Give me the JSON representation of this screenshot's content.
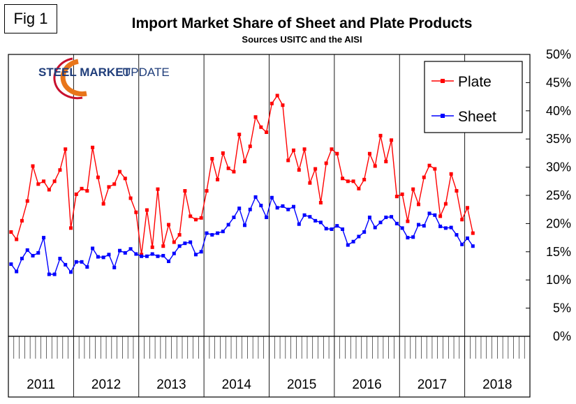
{
  "figure_label": "Fig 1",
  "logo": {
    "text_bold": "STEEL MARKET",
    "text_light": "UPDATE",
    "colors": {
      "blue": "#1f3d7a",
      "orange": "#e8751a",
      "red": "#c8102e"
    }
  },
  "chart_data": {
    "type": "line",
    "title": "Import Market Share of Sheet and Plate Products",
    "subtitle": "Sources USITC and the AISI",
    "y_axis": {
      "min": 0,
      "max": 50,
      "step": 5,
      "tick_labels": [
        "0%",
        "5%",
        "10%",
        "15%",
        "20%",
        "25%",
        "30%",
        "35%",
        "40%",
        "45%",
        "50%"
      ],
      "position": "right"
    },
    "x_axis": {
      "categories": [
        "2011",
        "2012",
        "2013",
        "2014",
        "2015",
        "2016",
        "2017",
        "2018"
      ],
      "months_per_year": 12
    },
    "grid": {
      "vertical_year_lines": true,
      "horizontal": false
    },
    "legend": {
      "placement": "top-right"
    },
    "series": [
      {
        "name": "Plate",
        "color": "#ff0000",
        "values": [
          18.5,
          17.2,
          20.5,
          24.0,
          30.2,
          27.0,
          27.5,
          26.0,
          27.5,
          29.5,
          33.2,
          19.2,
          25.2,
          26.2,
          25.8,
          33.5,
          28.2,
          23.5,
          26.5,
          27.0,
          29.2,
          28.0,
          24.5,
          22.0,
          14.5,
          22.4,
          15.8,
          26.1,
          16.0,
          19.8,
          16.7,
          18.0,
          25.8,
          21.3,
          20.7,
          21.0,
          25.8,
          31.5,
          27.8,
          32.5,
          29.8,
          29.2,
          35.8,
          31.0,
          33.7,
          38.9,
          37.1,
          36.2,
          41.3,
          42.7,
          41.0,
          31.2,
          33.0,
          29.5,
          33.2,
          27.2,
          29.7,
          23.7,
          30.7,
          33.2,
          32.4,
          28.0,
          27.5,
          27.5,
          26.2,
          27.8,
          32.4,
          30.2,
          35.6,
          31.0,
          34.8,
          24.8,
          25.2,
          20.4,
          26.1,
          23.4,
          28.2,
          30.3,
          29.7,
          21.3,
          23.5,
          28.8,
          25.8,
          20.7,
          22.8,
          18.3
        ]
      },
      {
        "name": "Sheet",
        "color": "#0000ff",
        "values": [
          12.8,
          11.5,
          13.8,
          15.3,
          14.3,
          14.8,
          17.5,
          11.0,
          11.0,
          13.8,
          12.7,
          11.4,
          13.2,
          13.2,
          12.3,
          15.6,
          14.1,
          14.0,
          14.5,
          12.2,
          15.2,
          14.8,
          15.5,
          14.6,
          14.2,
          14.2,
          14.6,
          14.2,
          14.3,
          13.3,
          14.7,
          16.0,
          16.5,
          16.7,
          14.5,
          15.0,
          18.3,
          18.0,
          18.3,
          18.6,
          19.8,
          21.1,
          22.7,
          19.7,
          22.5,
          24.7,
          23.2,
          21.1,
          24.6,
          22.8,
          23.1,
          22.5,
          23.0,
          19.9,
          21.5,
          21.2,
          20.5,
          20.2,
          19.1,
          19.0,
          19.6,
          19.0,
          16.2,
          16.8,
          17.7,
          18.5,
          21.1,
          19.3,
          20.2,
          21.1,
          21.2,
          20.0,
          19.2,
          17.5,
          17.6,
          19.8,
          19.6,
          21.8,
          21.5,
          19.5,
          19.2,
          19.3,
          18.0,
          16.3,
          17.4,
          16.0
        ]
      }
    ]
  }
}
